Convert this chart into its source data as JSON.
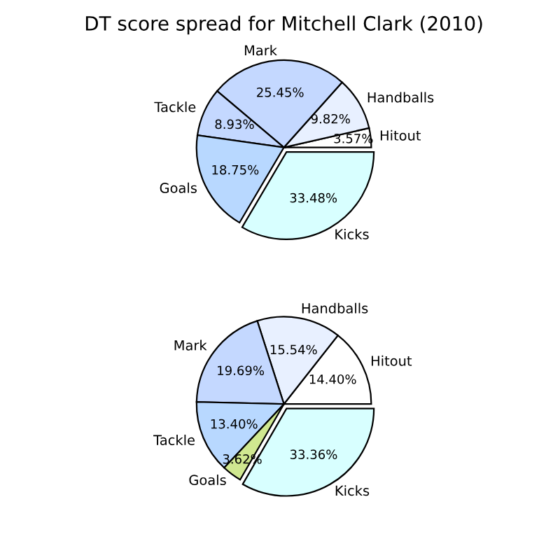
{
  "chart_data": [
    {
      "type": "pie",
      "title": "DT score spread for Mitchell Clark (2010)",
      "categories": [
        "Hitout",
        "Handballs",
        "Mark",
        "Tackle",
        "Goals",
        "Kicks"
      ],
      "values": [
        3.57,
        9.82,
        25.45,
        8.93,
        18.75,
        33.48
      ],
      "value_labels": [
        "3.57%",
        "9.82%",
        "25.45%",
        "8.93%",
        "18.75%",
        "33.48%"
      ],
      "colors": [
        "#ffffff",
        "#e8f0ff",
        "#c4d8ff",
        "#c4d8ff",
        "#b8d8ff",
        "#d8ffff"
      ]
    },
    {
      "type": "pie",
      "categories": [
        "Hitout",
        "Handballs",
        "Mark",
        "Tackle",
        "Goals",
        "Kicks"
      ],
      "values": [
        14.4,
        15.54,
        19.69,
        13.4,
        3.62,
        33.36
      ],
      "value_labels": [
        "14.40%",
        "15.54%",
        "19.69%",
        "13.40%",
        "3.62%",
        "33.36%"
      ],
      "colors": [
        "#ffffff",
        "#e8f0ff",
        "#c4d8ff",
        "#b8d8ff",
        "#d0e890",
        "#d8ffff"
      ]
    }
  ]
}
